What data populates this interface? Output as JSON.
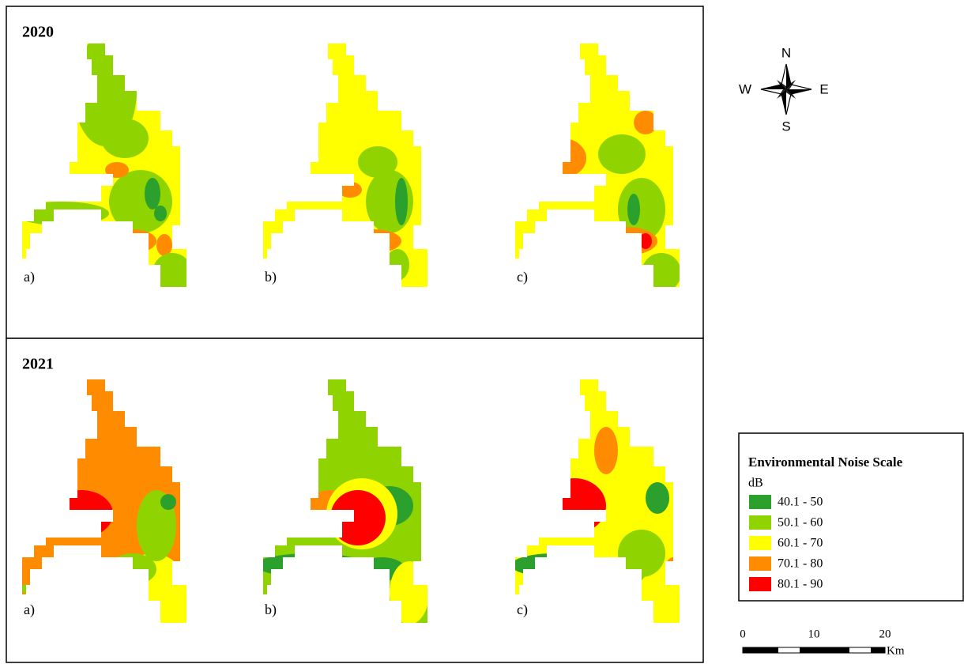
{
  "panels": [
    {
      "year": "2020",
      "maps": [
        "a)",
        "b)",
        "c)"
      ]
    },
    {
      "year": "2021",
      "maps": [
        "a)",
        "b)",
        "c)"
      ]
    }
  ],
  "compass": {
    "north": "N",
    "east": "E",
    "south": "S",
    "west": "W"
  },
  "legend": {
    "title": "Environmental Noise Scale",
    "unit": "dB",
    "items": [
      {
        "label": "40.1 - 50",
        "color": "#2ca02c"
      },
      {
        "label": "50.1 - 60",
        "color": "#8fd400"
      },
      {
        "label": "60.1 - 70",
        "color": "#ffff00"
      },
      {
        "label": "70.1 - 80",
        "color": "#ff8c00"
      },
      {
        "label": "80.1 - 90",
        "color": "#ff0000"
      }
    ]
  },
  "scale_bar": {
    "ticks": [
      0,
      10,
      20
    ],
    "unit": "Km"
  }
}
